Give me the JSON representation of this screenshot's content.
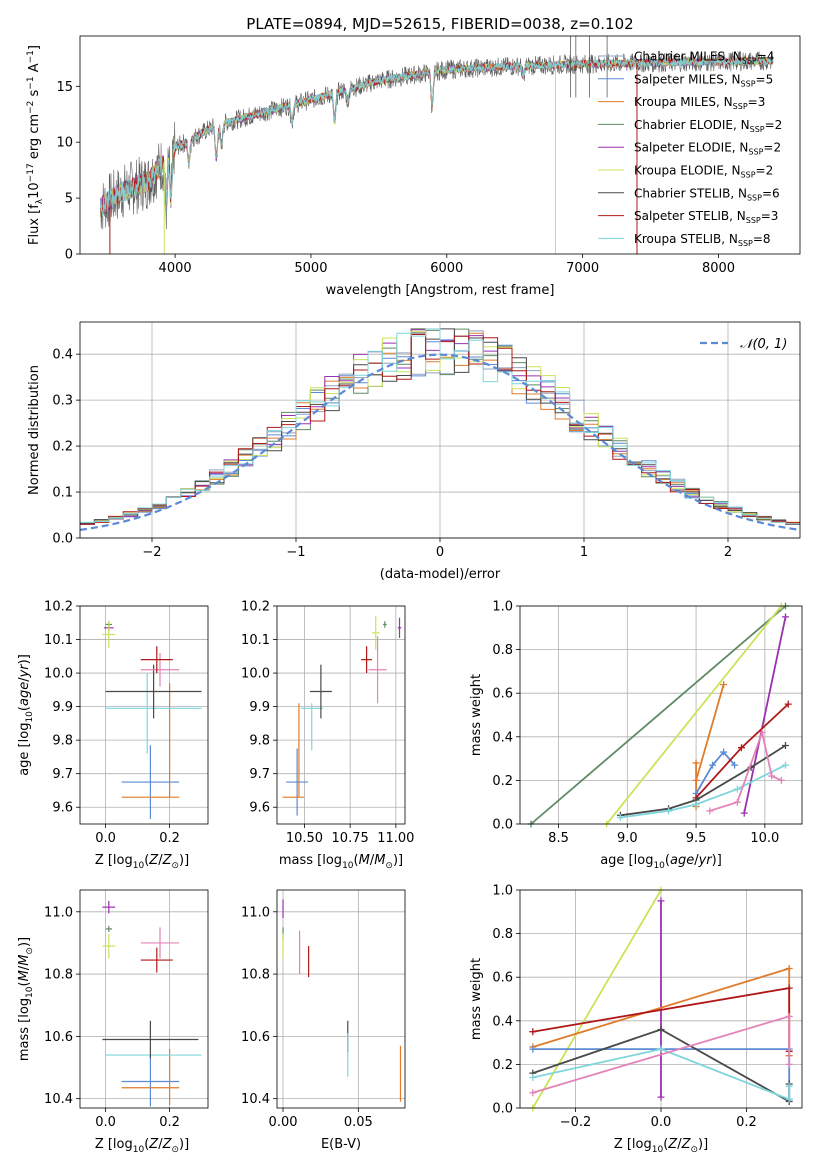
{
  "title": "PLATE=0894, MJD=52615, FIBERID=0038, z=0.102",
  "colors": {
    "chabrier_miles": "#5b8ad6",
    "salpeter_miles": "#8fa3bf",
    "kroupa_miles": "#e07b2a",
    "chabrier_elodie": "#5f8a66",
    "salpeter_elodie": "#9b30b0",
    "kroupa_elodie": "#cbe35a",
    "chabrier_stelib": "#4a4a4a",
    "salpeter_stelib": "#b01818",
    "kroupa_stelib": "#7dd6dc",
    "pink": "#e384b8",
    "normal": "#5b8ad6"
  },
  "legend_spectrum": [
    {
      "prefix": "Chabrier MILES, N",
      "sub": "SSP",
      "suffix": "=4",
      "color": "#8fa3bf"
    },
    {
      "prefix": "Salpeter MILES, N",
      "sub": "SSP",
      "suffix": "=5",
      "color": "#5b8ad6"
    },
    {
      "prefix": "Kroupa MILES, N",
      "sub": "SSP",
      "suffix": "=3",
      "color": "#e07b2a"
    },
    {
      "prefix": "Chabrier ELODIE, N",
      "sub": "SSP",
      "suffix": "=2",
      "color": "#5f8a66"
    },
    {
      "prefix": "Salpeter ELODIE, N",
      "sub": "SSP",
      "suffix": "=2",
      "color": "#9b30b0"
    },
    {
      "prefix": "Kroupa ELODIE, N",
      "sub": "SSP",
      "suffix": "=2",
      "color": "#cbe35a"
    },
    {
      "prefix": "Chabrier STELIB, N",
      "sub": "SSP",
      "suffix": "=6",
      "color": "#4a4a4a"
    },
    {
      "prefix": "Salpeter STELIB, N",
      "sub": "SSP",
      "suffix": "=3",
      "color": "#b01818"
    },
    {
      "prefix": "Kroupa STELIB, N",
      "sub": "SSP",
      "suffix": "=8",
      "color": "#7dd6dc"
    }
  ],
  "chart_data": [
    {
      "id": "spectrum",
      "type": "line",
      "title": "PLATE=0894, MJD=52615, FIBERID=0038, z=0.102",
      "xlabel": "wavelength [Angstrom, rest frame]",
      "ylabel": "Flux [f",
      "xlim": [
        3300,
        8600
      ],
      "ylim": [
        0,
        19.5
      ],
      "xticks": [
        4000,
        5000,
        6000,
        7000,
        8000
      ],
      "yticks": [
        0,
        5,
        10,
        15
      ],
      "continuum": {
        "x": [
          3450,
          3600,
          3800,
          4000,
          4300,
          4600,
          5000,
          5500,
          6000,
          6500,
          7000,
          7500,
          8000,
          8400
        ],
        "y": [
          4.2,
          5.5,
          6.5,
          9.5,
          11.5,
          12.5,
          13.8,
          15.5,
          16.5,
          16.8,
          17.0,
          17.1,
          17.2,
          17.3
        ]
      },
      "absorption_lines": [
        {
          "x": 3934,
          "depth": 4.5
        },
        {
          "x": 3969,
          "depth": 4.0
        },
        {
          "x": 4102,
          "depth": 2.0
        },
        {
          "x": 4304,
          "depth": 3.0
        },
        {
          "x": 4341,
          "depth": 2.0
        },
        {
          "x": 4861,
          "depth": 1.5
        },
        {
          "x": 5175,
          "depth": 2.5
        },
        {
          "x": 5270,
          "depth": 1.0
        },
        {
          "x": 5892,
          "depth": 3.0
        },
        {
          "x": 6563,
          "depth": 1.0
        }
      ],
      "series_names": [
        "Chabrier MILES",
        "Salpeter MILES",
        "Kroupa MILES",
        "Chabrier ELODIE",
        "Salpeter ELODIE",
        "Kroupa ELODIE",
        "Chabrier STELIB",
        "Salpeter STELIB",
        "Kroupa STELIB"
      ]
    },
    {
      "id": "residuals",
      "type": "line",
      "xlabel": "(data-model)/error",
      "ylabel": "Normed distribution",
      "xlim": [
        -2.5,
        2.5
      ],
      "ylim": [
        0,
        0.47
      ],
      "xticks": [
        -2,
        -1,
        0,
        1,
        2
      ],
      "xticklabels": [
        "−2",
        "−1",
        "0",
        "1",
        "2"
      ],
      "yticks": [
        0,
        0.1,
        0.2,
        0.3,
        0.4
      ],
      "yticklabels": [
        "0.0",
        "0.1",
        "0.2",
        "0.3",
        "0.4"
      ],
      "legend": "𝒩(0, 1)",
      "bin_width": 0.1,
      "series": [
        {
          "name": "Chabrier MILES",
          "color": "#8fa3bf"
        },
        {
          "name": "Salpeter MILES",
          "color": "#5b8ad6"
        },
        {
          "name": "Kroupa MILES",
          "color": "#e07b2a"
        },
        {
          "name": "Chabrier ELODIE",
          "color": "#5f8a66"
        },
        {
          "name": "Salpeter ELODIE",
          "color": "#9b30b0"
        },
        {
          "name": "Kroupa ELODIE",
          "color": "#cbe35a"
        },
        {
          "name": "Chabrier STELIB",
          "color": "#4a4a4a"
        },
        {
          "name": "Salpeter STELIB",
          "color": "#b01818"
        },
        {
          "name": "Kroupa STELIB",
          "color": "#7dd6dc"
        }
      ]
    },
    {
      "id": "age_vs_Z",
      "type": "scatter",
      "xlabel": "Z [log",
      "ylabel": "age  [log",
      "xlim": [
        -0.08,
        0.32
      ],
      "ylim": [
        9.55,
        10.2
      ],
      "xticks": [
        0.0,
        0.2
      ],
      "xticklabels": [
        "0.0",
        "0.2"
      ],
      "yticks": [
        9.6,
        9.7,
        9.8,
        9.9,
        10.0,
        10.1,
        10.2
      ],
      "yticklabels": [
        "9.6",
        "9.7",
        "9.8",
        "9.9",
        "10.0",
        "10.1",
        "10.2"
      ],
      "points": [
        {
          "x": 0.14,
          "y": 9.675,
          "ex": 0.09,
          "ey": 0.11,
          "color": "#5b8ad6"
        },
        {
          "x": 0.14,
          "y": 9.63,
          "ex": 0.09,
          "ey": 0.0,
          "color": "#e07b2a"
        },
        {
          "x": 0.2,
          "y": 9.8,
          "ex": 0.0,
          "ey": 0.17,
          "color": "#e07b2a"
        },
        {
          "x": 0.15,
          "y": 9.895,
          "ex": 0.15,
          "ey": 0.0,
          "color": "#7dd6dc"
        },
        {
          "x": 0.13,
          "y": 9.88,
          "ex": 0.0,
          "ey": 0.12,
          "color": "#7dd6dc"
        },
        {
          "x": 0.15,
          "y": 9.945,
          "ex": 0.15,
          "ey": 0.08,
          "color": "#4a4a4a"
        },
        {
          "x": 0.17,
          "y": 10.01,
          "ex": 0.06,
          "ey": 0.05,
          "color": "#e384b8"
        },
        {
          "x": 0.16,
          "y": 10.04,
          "ex": 0.05,
          "ey": 0.04,
          "color": "#b01818"
        },
        {
          "x": 0.01,
          "y": 10.135,
          "ex": 0.015,
          "ey": 0.01,
          "color": "#9b30b0"
        },
        {
          "x": 0.01,
          "y": 10.145,
          "ex": 0.01,
          "ey": 0.01,
          "color": "#5f8a66"
        },
        {
          "x": 0.01,
          "y": 10.115,
          "ex": 0.02,
          "ey": 0.04,
          "color": "#cbe35a"
        }
      ]
    },
    {
      "id": "age_vs_mass",
      "type": "scatter",
      "xlabel": "mass [log",
      "xlim": [
        10.35,
        11.05
      ],
      "ylim": [
        9.55,
        10.2
      ],
      "xticks": [
        10.5,
        10.75,
        11.0
      ],
      "xticklabels": [
        "10.50",
        "10.75",
        "11.00"
      ],
      "yticks": [
        9.6,
        9.7,
        9.8,
        9.9,
        10.0,
        10.1,
        10.2
      ],
      "yticklabels": [
        "9.6",
        "9.7",
        "9.8",
        "9.9",
        "10.0",
        "10.1",
        "10.2"
      ],
      "points": [
        {
          "x": 10.46,
          "y": 9.675,
          "ex": 0.06,
          "ey": 0.1,
          "color": "#5b8ad6"
        },
        {
          "x": 10.44,
          "y": 9.63,
          "ex": 0.06,
          "ey": 0.0,
          "color": "#e07b2a"
        },
        {
          "x": 10.47,
          "y": 9.77,
          "ex": 0.0,
          "ey": 0.14,
          "color": "#e07b2a"
        },
        {
          "x": 10.54,
          "y": 9.895,
          "ex": 0.06,
          "ey": 0.0,
          "color": "#7dd6dc"
        },
        {
          "x": 10.54,
          "y": 9.84,
          "ex": 0.0,
          "ey": 0.07,
          "color": "#7dd6dc"
        },
        {
          "x": 10.59,
          "y": 9.945,
          "ex": 0.06,
          "ey": 0.08,
          "color": "#4a4a4a"
        },
        {
          "x": 10.9,
          "y": 10.01,
          "ex": 0.05,
          "ey": 0.1,
          "color": "#e384b8"
        },
        {
          "x": 10.84,
          "y": 10.04,
          "ex": 0.03,
          "ey": 0.04,
          "color": "#b01818"
        },
        {
          "x": 11.02,
          "y": 10.135,
          "ex": 0.01,
          "ey": 0.03,
          "color": "#9b30b0"
        },
        {
          "x": 10.94,
          "y": 10.145,
          "ex": 0.01,
          "ey": 0.01,
          "color": "#5f8a66"
        },
        {
          "x": 10.89,
          "y": 10.12,
          "ex": 0.02,
          "ey": 0.05,
          "color": "#cbe35a"
        }
      ]
    },
    {
      "id": "mass_weight_vs_age",
      "type": "line",
      "xlabel": "age  [log",
      "ylabel": "mass weight",
      "xlim": [
        8.22,
        10.27
      ],
      "ylim": [
        0,
        1.0
      ],
      "xticks": [
        8.5,
        9.0,
        9.5,
        10.0
      ],
      "xticklabels": [
        "8.5",
        "9.0",
        "9.5",
        "10.0"
      ],
      "yticks": [
        0,
        0.2,
        0.4,
        0.6,
        0.8,
        1.0
      ],
      "yticklabels": [
        "0.0",
        "0.2",
        "0.4",
        "0.6",
        "0.8",
        "1.0"
      ],
      "series": [
        {
          "name": "Chabrier ELODIE",
          "color": "#5f8a66",
          "x": [
            8.3,
            10.15
          ],
          "y": [
            0.0,
            1.0
          ]
        },
        {
          "name": "Kroupa ELODIE",
          "color": "#cbe35a",
          "x": [
            8.85,
            10.12
          ],
          "y": [
            0.0,
            1.0
          ]
        },
        {
          "name": "Salpeter ELODIE",
          "color": "#9b30b0",
          "x": [
            9.85,
            10.15
          ],
          "y": [
            0.05,
            0.95
          ]
        },
        {
          "name": "Kroupa MILES",
          "color": "#e07b2a",
          "x": [
            9.5,
            9.5,
            9.5,
            9.7
          ],
          "y": [
            0.28,
            0.08,
            0.2,
            0.64
          ]
        },
        {
          "name": "Salpeter MILES",
          "color": "#5b8ad6",
          "x": [
            9.5,
            9.62,
            9.7,
            9.78
          ],
          "y": [
            0.14,
            0.27,
            0.33,
            0.27
          ]
        },
        {
          "name": "Salpeter STELIB",
          "color": "#b01818",
          "x": [
            9.5,
            9.83,
            10.17
          ],
          "y": [
            0.12,
            0.35,
            0.55
          ]
        },
        {
          "name": "Chabrier STELIB",
          "color": "#4a4a4a",
          "x": [
            8.95,
            9.3,
            9.5,
            9.9,
            10.15
          ],
          "y": [
            0.04,
            0.07,
            0.11,
            0.26,
            0.36
          ]
        },
        {
          "name": "Kroupa STELIB",
          "color": "#7dd6dc",
          "x": [
            8.95,
            9.3,
            9.5,
            9.8,
            10.15
          ],
          "y": [
            0.03,
            0.06,
            0.09,
            0.16,
            0.27
          ]
        },
        {
          "name": "pink",
          "color": "#e384b8",
          "x": [
            9.6,
            9.8,
            9.98,
            10.05,
            10.12
          ],
          "y": [
            0.06,
            0.1,
            0.42,
            0.22,
            0.2
          ]
        }
      ]
    },
    {
      "id": "mass_vs_Z",
      "type": "scatter",
      "xlabel": "Z [log",
      "ylabel": "mass [log",
      "xlim": [
        -0.08,
        0.32
      ],
      "ylim": [
        10.37,
        11.07
      ],
      "xticks": [
        0.0,
        0.2
      ],
      "xticklabels": [
        "0.0",
        "0.2"
      ],
      "yticks": [
        10.4,
        10.6,
        10.8,
        11.0
      ],
      "yticklabels": [
        "10.4",
        "10.6",
        "10.8",
        "11.0"
      ],
      "points": [
        {
          "x": 0.14,
          "y": 10.455,
          "ex": 0.09,
          "ey": 0.08,
          "color": "#5b8ad6"
        },
        {
          "x": 0.14,
          "y": 10.435,
          "ex": 0.09,
          "ey": 0.0,
          "color": "#e07b2a"
        },
        {
          "x": 0.2,
          "y": 10.47,
          "ex": 0.0,
          "ey": 0.09,
          "color": "#e07b2a"
        },
        {
          "x": 0.15,
          "y": 10.54,
          "ex": 0.15,
          "ey": 0.0,
          "color": "#7dd6dc"
        },
        {
          "x": 0.14,
          "y": 10.59,
          "ex": 0.15,
          "ey": 0.06,
          "color": "#4a4a4a"
        },
        {
          "x": 0.17,
          "y": 10.9,
          "ex": 0.06,
          "ey": 0.05,
          "color": "#e384b8"
        },
        {
          "x": 0.16,
          "y": 10.845,
          "ex": 0.05,
          "ey": 0.04,
          "color": "#b01818"
        },
        {
          "x": 0.01,
          "y": 11.015,
          "ex": 0.02,
          "ey": 0.02,
          "color": "#9b30b0"
        },
        {
          "x": 0.01,
          "y": 10.945,
          "ex": 0.01,
          "ey": 0.01,
          "color": "#5f8a66"
        },
        {
          "x": 0.01,
          "y": 10.89,
          "ex": 0.02,
          "ey": 0.04,
          "color": "#cbe35a"
        }
      ]
    },
    {
      "id": "mass_vs_ebv",
      "type": "scatter",
      "xlabel": "E(B-V)",
      "xlim": [
        -0.004,
        0.081
      ],
      "ylim": [
        10.37,
        11.07
      ],
      "xticks": [
        0.0,
        0.05
      ],
      "xticklabels": [
        "0.00",
        "0.05"
      ],
      "yticks": [
        10.4,
        10.6,
        10.8,
        11.0
      ],
      "yticklabels": [
        "10.4",
        "10.6",
        "10.8",
        "11.0"
      ],
      "points": [
        {
          "x": 0.0,
          "y": 11.01,
          "ex": 0.0,
          "ey": 0.03,
          "color": "#9b30b0"
        },
        {
          "x": 0.0,
          "y": 10.93,
          "ex": 0.0,
          "ey": 0.02,
          "color": "#5f8a66"
        },
        {
          "x": 0.0,
          "y": 10.89,
          "ex": 0.0,
          "ey": 0.04,
          "color": "#cbe35a"
        },
        {
          "x": 0.011,
          "y": 10.87,
          "ex": 0.0,
          "ey": 0.07,
          "color": "#e384b8"
        },
        {
          "x": 0.017,
          "y": 10.84,
          "ex": 0.0,
          "ey": 0.05,
          "color": "#b01818"
        },
        {
          "x": 0.043,
          "y": 10.6,
          "ex": 0.0,
          "ey": 0.05,
          "color": "#4a4a4a"
        },
        {
          "x": 0.043,
          "y": 10.54,
          "ex": 0.0,
          "ey": 0.07,
          "color": "#7dd6dc"
        },
        {
          "x": 0.078,
          "y": 10.48,
          "ex": 0.0,
          "ey": 0.09,
          "color": "#e07b2a"
        }
      ]
    },
    {
      "id": "mass_weight_vs_Z",
      "type": "line",
      "xlabel": "Z [log",
      "ylabel": "mass weight",
      "xlim": [
        -0.33,
        0.33
      ],
      "ylim": [
        0,
        1.0
      ],
      "xticks": [
        -0.2,
        0.0,
        0.2
      ],
      "xticklabels": [
        "−0.2",
        "0.0",
        "0.2"
      ],
      "yticks": [
        0,
        0.2,
        0.4,
        0.6,
        0.8,
        1.0
      ],
      "yticklabels": [
        "0.0",
        "0.2",
        "0.4",
        "0.6",
        "0.8",
        "1.0"
      ],
      "series": [
        {
          "name": "Kroupa ELODIE",
          "color": "#cbe35a",
          "x": [
            -0.3,
            0.0
          ],
          "y": [
            0.0,
            1.0
          ]
        },
        {
          "name": "Salpeter ELODIE",
          "color": "#9b30b0",
          "x": [
            0.0,
            0.0
          ],
          "y": [
            0.05,
            0.95
          ]
        },
        {
          "name": "Kroupa MILES",
          "color": "#e07b2a",
          "x": [
            -0.3,
            0.3,
            0.3
          ],
          "y": [
            0.28,
            0.64,
            0.24
          ]
        },
        {
          "name": "Salpeter STELIB",
          "color": "#b01818",
          "x": [
            -0.3,
            0.3,
            0.3
          ],
          "y": [
            0.35,
            0.55,
            0.26
          ]
        },
        {
          "name": "Salpeter MILES",
          "color": "#5b8ad6",
          "x": [
            -0.3,
            0.3,
            0.3
          ],
          "y": [
            0.27,
            0.27,
            0.04
          ]
        },
        {
          "name": "Chabrier STELIB",
          "color": "#4a4a4a",
          "x": [
            -0.3,
            0.0,
            0.3,
            0.3
          ],
          "y": [
            0.16,
            0.36,
            0.03,
            0.11
          ]
        },
        {
          "name": "Kroupa STELIB",
          "color": "#7dd6dc",
          "x": [
            -0.3,
            0.0,
            0.3,
            0.3
          ],
          "y": [
            0.14,
            0.27,
            0.04,
            0.1
          ]
        },
        {
          "name": "pink",
          "color": "#e384b8",
          "x": [
            -0.3,
            0.3,
            0.3
          ],
          "y": [
            0.07,
            0.42,
            0.2
          ]
        }
      ]
    }
  ]
}
